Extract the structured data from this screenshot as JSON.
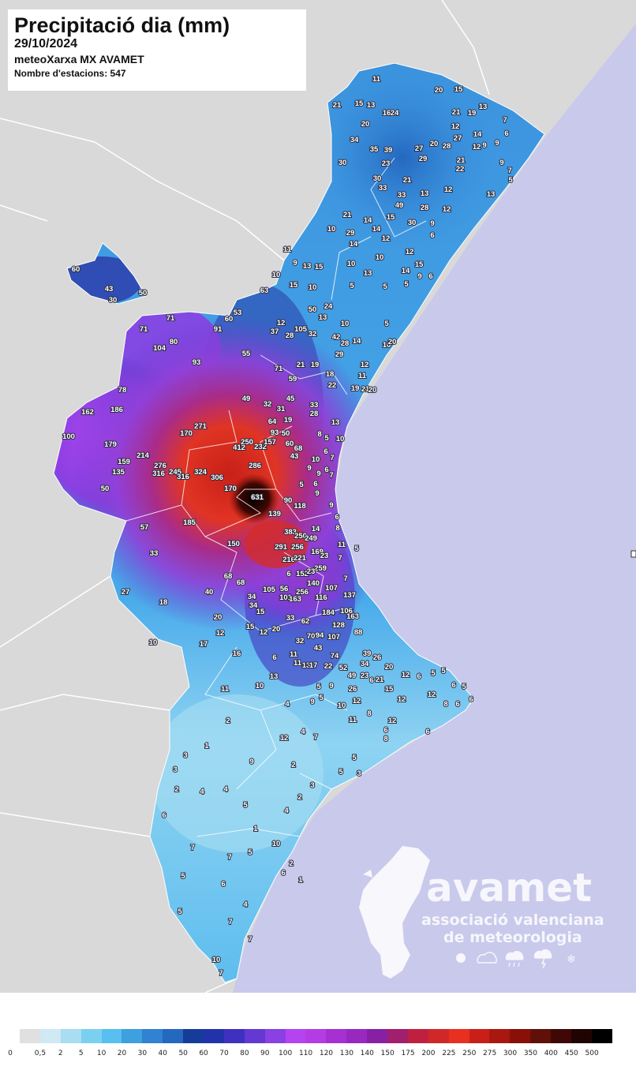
{
  "header": {
    "title": "Precipitació dia (mm)",
    "date": "29/10/2024",
    "network": "meteoXarxa MX AVAMET",
    "stations_count_label": "Nombre d'estacions: 547"
  },
  "logo": {
    "name": "avamet",
    "line1": "associació valenciana",
    "line2": "de meteorologia",
    "icons": [
      "sun-icon",
      "cloud-icon",
      "rain-icon",
      "storm-icon",
      "snow-icon"
    ]
  },
  "colors": {
    "sea": "#c9c9ec",
    "neighbour_land": "#d9d9d9",
    "borders": "#ffffff"
  },
  "legend": {
    "labels": [
      "0",
      "0,5",
      "2",
      "5",
      "10",
      "20",
      "30",
      "40",
      "50",
      "60",
      "70",
      "80",
      "90",
      "100",
      "110",
      "120",
      "130",
      "140",
      "150",
      "175",
      "200",
      "225",
      "250",
      "275",
      "300",
      "350",
      "400",
      "450",
      "500"
    ],
    "colors": [
      "#e0e0e0",
      "#cfe9f5",
      "#a9ddf1",
      "#7ad1ef",
      "#58bff0",
      "#3fa0e0",
      "#3182d0",
      "#2468c0",
      "#143c98",
      "#2232aa",
      "#4030c0",
      "#6438d2",
      "#8a40e2",
      "#b444f2",
      "#b53ce2",
      "#a630d2",
      "#9828c0",
      "#8820a6",
      "#a21f6e",
      "#c02040",
      "#d02828",
      "#e83020",
      "#c82018",
      "#a81810",
      "#881008",
      "#601008",
      "#400804",
      "#200404",
      "#000000"
    ]
  },
  "stations": [
    "11",
    "20",
    "15",
    "21",
    "15",
    "13",
    "16",
    "24",
    "21",
    "19",
    "13",
    "7",
    "20",
    "12",
    "34",
    "35",
    "39",
    "27",
    "20",
    "28",
    "27",
    "14",
    "12",
    "9",
    "6",
    "9",
    "30",
    "23",
    "29",
    "22",
    "21",
    "9",
    "7",
    "5",
    "13",
    "30",
    "33",
    "21",
    "33",
    "49",
    "13",
    "12",
    "28",
    "12",
    "21",
    "14",
    "15",
    "30",
    "9",
    "6",
    "10",
    "29",
    "14",
    "12",
    "14",
    "12",
    "11",
    "9",
    "13",
    "15",
    "10",
    "13",
    "10",
    "15",
    "14",
    "9",
    "6",
    "10",
    "15",
    "10",
    "5",
    "5",
    "5",
    "50",
    "24",
    "13",
    "63",
    "53",
    "60",
    "12",
    "37",
    "28",
    "105",
    "32",
    "10",
    "42",
    "28",
    "14",
    "29",
    "21",
    "19",
    "71",
    "59",
    "18",
    "22",
    "19",
    "21",
    "20",
    "12",
    "11",
    "5",
    "10",
    "20",
    "93",
    "91",
    "55",
    "104",
    "80",
    "71",
    "71",
    "78",
    "186",
    "162",
    "100",
    "179",
    "159",
    "135",
    "214",
    "50",
    "60",
    "43",
    "30",
    "50",
    "49",
    "32",
    "45",
    "31",
    "33",
    "28",
    "64",
    "19",
    "170",
    "271",
    "93",
    "50",
    "412",
    "250",
    "232",
    "157",
    "60",
    "68",
    "43",
    "286",
    "276",
    "316",
    "245",
    "316",
    "324",
    "306",
    "170",
    "631",
    "90",
    "118",
    "139",
    "13",
    "10",
    "5",
    "8",
    "6",
    "7",
    "10",
    "9",
    "9",
    "6",
    "7",
    "5",
    "6",
    "9",
    "9",
    "6",
    "8",
    "383",
    "250",
    "249",
    "14",
    "291",
    "256",
    "11",
    "5",
    "169",
    "23",
    "216",
    "221",
    "7",
    "259",
    "6",
    "152",
    "23",
    "140",
    "107",
    "105",
    "56",
    "256",
    "101",
    "163",
    "116",
    "137",
    "7",
    "184",
    "106",
    "163",
    "128",
    "88",
    "33",
    "62",
    "32",
    "70",
    "94",
    "107",
    "43",
    "74",
    "39",
    "26",
    "34",
    "52",
    "49",
    "23",
    "20",
    "21",
    "185",
    "57",
    "150",
    "33",
    "68",
    "68",
    "40",
    "34",
    "34",
    "15",
    "27",
    "18",
    "20",
    "12",
    "15",
    "12",
    "20",
    "10",
    "17",
    "16",
    "6",
    "11",
    "11",
    "13",
    "17",
    "22",
    "13",
    "11",
    "10",
    "12",
    "6",
    "5",
    "5",
    "6",
    "5",
    "6",
    "12",
    "8",
    "6",
    "12",
    "15",
    "6",
    "9",
    "5",
    "26",
    "12",
    "5",
    "9",
    "4",
    "10",
    "11",
    "8",
    "12",
    "6",
    "8",
    "6",
    "2",
    "1",
    "3",
    "12",
    "4",
    "7",
    "9",
    "2",
    "3",
    "5",
    "3",
    "5",
    "3",
    "2",
    "6",
    "7",
    "5",
    "4",
    "1",
    "4",
    "2",
    "4",
    "7",
    "5",
    "10",
    "2",
    "1",
    "6",
    "5",
    "6",
    "4",
    "7",
    "5",
    "7",
    "10",
    "7"
  ]
}
